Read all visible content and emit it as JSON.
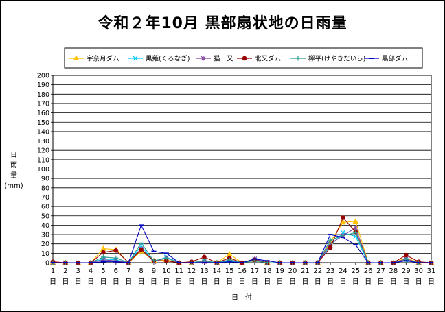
{
  "chart_data": {
    "type": "line",
    "title": "令和２年10月 黒部扇状地の日雨量",
    "ylabel": "日雨量",
    "yunit": "(mm)",
    "xlabel": "日　付",
    "ylim": [
      0,
      200
    ],
    "ytick_step": 10,
    "grid": true,
    "legend_position": "top",
    "x": [
      1,
      2,
      3,
      4,
      5,
      6,
      7,
      8,
      9,
      10,
      11,
      12,
      13,
      14,
      15,
      16,
      17,
      18,
      19,
      20,
      21,
      22,
      23,
      24,
      25,
      26,
      27,
      28,
      29,
      30,
      31
    ],
    "x_suffix": "日",
    "series": [
      {
        "name": "宇奈月ダム",
        "color": "#ffc000",
        "marker": "triangle",
        "values": [
          0,
          0,
          0,
          0,
          15,
          14,
          0,
          12,
          2,
          3,
          0,
          0,
          2,
          0,
          9,
          0,
          3,
          0,
          0,
          0,
          0,
          0,
          22,
          43,
          44,
          0,
          0,
          0,
          5,
          0,
          0
        ]
      },
      {
        "name": "黒薙(くろなぎ)",
        "color": "#00c8ff",
        "marker": "x",
        "values": [
          0,
          0,
          0,
          0,
          4,
          3,
          0,
          18,
          1,
          6,
          0,
          0,
          2,
          0,
          2,
          0,
          3,
          0,
          0,
          0,
          0,
          0,
          18,
          32,
          28,
          0,
          0,
          0,
          3,
          0,
          0
        ]
      },
      {
        "name": "猫　又",
        "color": "#7f3f98",
        "marker": "star",
        "values": [
          0,
          0,
          0,
          0,
          3,
          2,
          0,
          15,
          1,
          5,
          0,
          0,
          1,
          0,
          3,
          0,
          4,
          0,
          0,
          0,
          0,
          0,
          20,
          29,
          37,
          0,
          0,
          0,
          4,
          0,
          0
        ]
      },
      {
        "name": "北又ダム",
        "color": "#990000",
        "marker": "circle",
        "values": [
          1,
          0,
          0,
          0,
          11,
          13,
          0,
          14,
          2,
          2,
          0,
          1,
          6,
          0,
          5,
          0,
          3,
          0,
          0,
          0,
          0,
          0,
          16,
          48,
          33,
          0,
          0,
          0,
          8,
          1,
          0
        ]
      },
      {
        "name": "欅平(けやきだいら)",
        "color": "#2a9d8f",
        "marker": "plus",
        "values": [
          0,
          0,
          0,
          0,
          6,
          5,
          0,
          21,
          2,
          5,
          0,
          0,
          2,
          0,
          3,
          0,
          2,
          0,
          0,
          0,
          0,
          0,
          24,
          29,
          32,
          0,
          0,
          0,
          3,
          0,
          0
        ]
      },
      {
        "name": "黒部ダム",
        "color": "#0000c0",
        "marker": "dash",
        "values": [
          0,
          0,
          0,
          0,
          1,
          1,
          0,
          40,
          12,
          10,
          0,
          0,
          0,
          0,
          1,
          0,
          4,
          2,
          0,
          0,
          0,
          0,
          30,
          27,
          19,
          0,
          0,
          0,
          2,
          0,
          0
        ]
      }
    ]
  }
}
